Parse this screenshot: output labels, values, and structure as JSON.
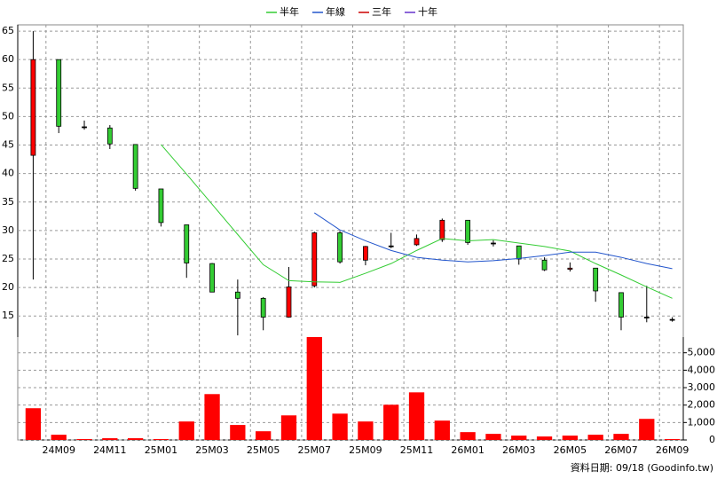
{
  "chart_data": [
    {
      "type": "candlestick",
      "series": [
        {
          "name": "半年",
          "color": "#33cc33",
          "values": [
            null,
            null,
            null,
            null,
            null,
            45.1,
            39.9,
            34.6,
            29.3,
            24.0,
            21.2,
            21.0,
            20.9,
            22.5,
            24.2,
            26.5,
            28.6,
            28.2,
            28.4,
            27.8,
            27.2,
            26.4,
            24.2,
            22.2,
            20.1,
            18.1
          ]
        },
        {
          "name": "年線",
          "color": "#2255cc",
          "values": [
            null,
            null,
            null,
            null,
            null,
            null,
            null,
            null,
            null,
            null,
            null,
            33.1,
            30.1,
            28.2,
            26.5,
            25.3,
            24.8,
            24.5,
            24.7,
            25.1,
            25.6,
            26.2,
            26.2,
            25.3,
            24.2,
            23.3
          ]
        },
        {
          "name": "三年",
          "color": "#cc0000",
          "values": [
            null,
            null,
            null,
            null,
            null,
            null,
            null,
            null,
            null,
            null,
            null,
            null,
            null,
            null,
            null,
            null,
            null,
            null,
            null,
            null,
            null,
            null,
            null,
            null,
            null,
            null
          ]
        },
        {
          "name": "十年",
          "color": "#6633cc",
          "values": [
            null,
            null,
            null,
            null,
            null,
            null,
            null,
            null,
            null,
            null,
            null,
            null,
            null,
            null,
            null,
            null,
            null,
            null,
            null,
            null,
            null,
            null,
            null,
            null,
            null,
            null
          ]
        }
      ],
      "open": [
        43.2,
        60,
        48.2,
        48.0,
        45.1,
        37.3,
        31.0,
        24.2,
        19.2,
        18.1,
        14.8,
        20.3,
        29.6,
        24.8,
        27.3,
        27.5,
        28.4,
        31.8,
        27.8,
        27.3,
        24.8,
        23.2,
        23.4,
        19.1,
        14.8,
        14.4
      ],
      "high": [
        65,
        60,
        49.3,
        48.5,
        45.1,
        37.3,
        31.0,
        24.3,
        21.4,
        18.3,
        23.6,
        29.8,
        29.9,
        27.3,
        29.6,
        29.3,
        32.1,
        31.8,
        28.3,
        27.3,
        25.3,
        24.4,
        23.4,
        19.1,
        20.3,
        14.8
      ],
      "low": [
        21.4,
        47.1,
        47.7,
        44.3,
        37.0,
        30.7,
        21.7,
        19.2,
        11.6,
        12.5,
        14.7,
        20.0,
        24.2,
        23.9,
        26.9,
        27.3,
        28.0,
        27.5,
        27.2,
        24.0,
        22.9,
        22.8,
        17.5,
        12.5,
        13.9,
        14.0
      ],
      "close": [
        60,
        48.3,
        48.2,
        45.2,
        37.4,
        31.4,
        24.3,
        19.2,
        18.1,
        14.8,
        20.1,
        29.6,
        24.5,
        27.2,
        27.3,
        28.6,
        31.8,
        27.9,
        27.8,
        25.0,
        23.1,
        23.4,
        19.4,
        14.8,
        14.8,
        14.4
      ],
      "up_color": "#ff0000",
      "down_color": "#33cc33",
      "ylim": [
        11.3,
        66.1
      ],
      "yticks": [
        15,
        20,
        25,
        30,
        35,
        40,
        45,
        50,
        55,
        60,
        65
      ],
      "grid": true
    },
    {
      "type": "bar",
      "categories": [
        null,
        "24M09",
        null,
        "24M11",
        null,
        "25M01",
        null,
        "25M03",
        null,
        "25M05",
        null,
        "25M07",
        null,
        "25M09",
        null,
        "25M11",
        null,
        "26M01",
        null,
        "26M03",
        null,
        "26M05",
        null,
        "26M07",
        null,
        "26M09"
      ],
      "values": [
        1820,
        300,
        50,
        100,
        100,
        50,
        1060,
        2630,
        860,
        500,
        1410,
        5900,
        1510,
        1060,
        2020,
        2730,
        1110,
        450,
        350,
        250,
        200,
        250,
        300,
        350,
        1210,
        50
      ],
      "color": "#ff0000",
      "ylim": [
        0,
        5900
      ],
      "yticks": [
        0,
        {
          "value": 1000,
          "label": "1,000"
        },
        {
          "value": 2000,
          "label": "2,000"
        },
        {
          "value": 3000,
          "label": "3,000"
        },
        {
          "value": 4000,
          "label": "4,000"
        },
        {
          "value": 5000,
          "label": "5,000"
        }
      ],
      "grid": true
    }
  ],
  "footer": "資料日期: 09/18 (Goodinfo.tw)"
}
